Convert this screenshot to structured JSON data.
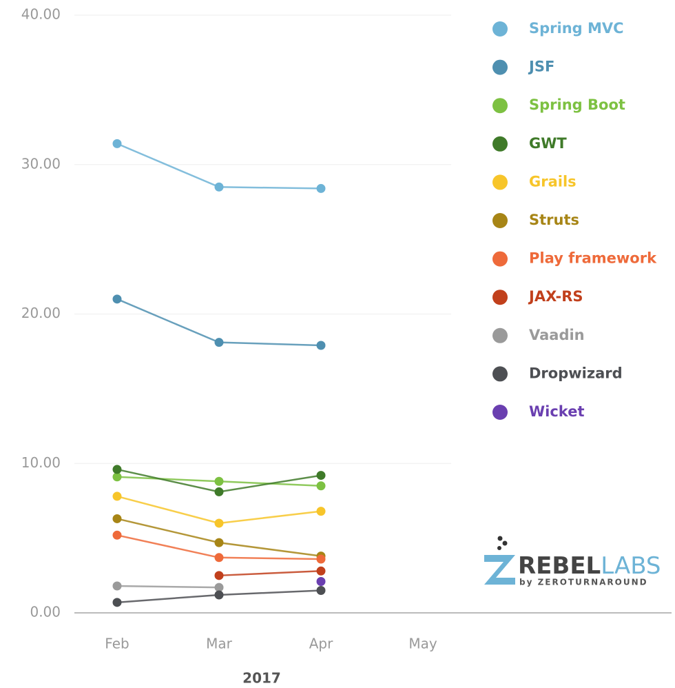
{
  "chart_data": {
    "type": "line",
    "xlabel": "2017",
    "categories": [
      "Feb",
      "Mar",
      "Apr",
      "May"
    ],
    "ylim": [
      0,
      40
    ],
    "yticks": [
      {
        "value": 0,
        "label": "0.00"
      },
      {
        "value": 10,
        "label": "10.00"
      },
      {
        "value": 20,
        "label": "20.00"
      },
      {
        "value": 30,
        "label": "30.00"
      },
      {
        "value": 40,
        "label": "40.00"
      }
    ],
    "grid": true,
    "legend": "right",
    "series": [
      {
        "name": "Spring MVC",
        "color": "#6db3d6",
        "values": [
          31.4,
          28.5,
          28.4,
          null
        ]
      },
      {
        "name": "JSF",
        "color": "#4e8fb0",
        "values": [
          21.0,
          18.1,
          17.9,
          null
        ]
      },
      {
        "name": "Spring Boot",
        "color": "#7dc142",
        "values": [
          9.1,
          8.8,
          8.5,
          null
        ]
      },
      {
        "name": "GWT",
        "color": "#3f7a29",
        "values": [
          9.6,
          8.1,
          9.2,
          null
        ]
      },
      {
        "name": "Grails",
        "color": "#f7c52a",
        "values": [
          7.8,
          6.0,
          6.8,
          null
        ]
      },
      {
        "name": "Struts",
        "color": "#a78516",
        "values": [
          6.3,
          4.7,
          3.8,
          null
        ]
      },
      {
        "name": "Play framework",
        "color": "#ee6a3a",
        "values": [
          5.2,
          3.7,
          3.6,
          null
        ]
      },
      {
        "name": "JAX-RS",
        "color": "#c1401c",
        "values": [
          null,
          2.5,
          2.8,
          null
        ]
      },
      {
        "name": "Vaadin",
        "color": "#9a9a9a",
        "values": [
          1.8,
          1.7,
          null,
          null
        ]
      },
      {
        "name": "Dropwizard",
        "color": "#4d4f53",
        "values": [
          0.7,
          1.2,
          1.5,
          null
        ]
      },
      {
        "name": "Wicket",
        "color": "#6a3fb0",
        "values": [
          null,
          null,
          2.1,
          null
        ]
      }
    ]
  },
  "logo": {
    "brand_a": "REBEL",
    "brand_b": "LABS",
    "tagline": "by ZEROTURNAROUND"
  }
}
